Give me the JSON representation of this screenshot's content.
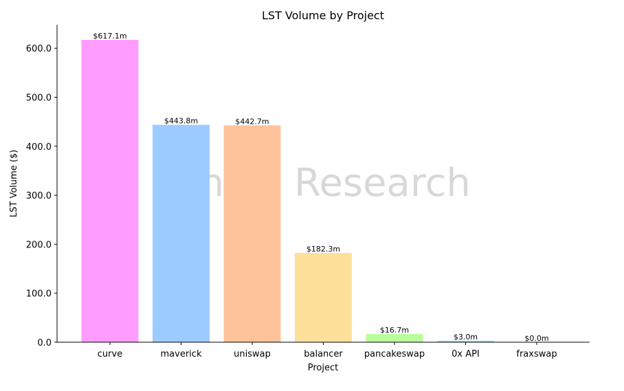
{
  "chart_data": {
    "type": "bar",
    "title": "LST Volume by Project",
    "xlabel": "Project",
    "ylabel": "LST Volume ($)",
    "watermark": "Shoal Research",
    "categories": [
      "curve",
      "maverick",
      "uniswap",
      "balancer",
      "pancakeswap",
      "0x API",
      "fraxswap"
    ],
    "values": [
      617.1,
      443.8,
      442.7,
      182.3,
      16.7,
      3.0,
      0.0
    ],
    "data_labels": [
      "$617.1m",
      "$443.8m",
      "$442.7m",
      "$182.3m",
      "$16.7m",
      "$3.0m",
      "$0.0m"
    ],
    "colors": [
      "#ff9cff",
      "#9ccbff",
      "#ffc39b",
      "#ffe09b",
      "#b8ff9c",
      "#9cd8ff",
      "#c9b0ff"
    ],
    "yticks": [
      0,
      100,
      200,
      300,
      400,
      500,
      600
    ],
    "ytick_labels": [
      "0.0",
      "100.0",
      "200.0",
      "300.0",
      "400.0",
      "500.0",
      "600.0"
    ],
    "ylim": [
      0,
      648
    ],
    "grid": false,
    "legend": "none"
  }
}
